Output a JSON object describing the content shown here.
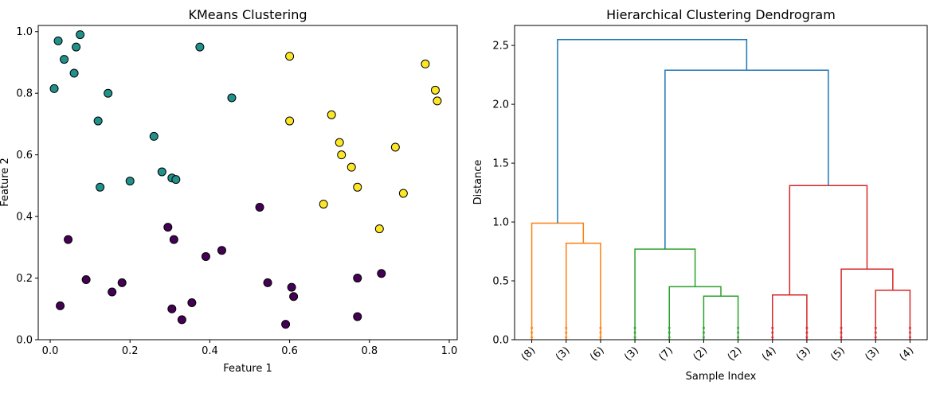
{
  "chart_data": [
    {
      "type": "scatter",
      "title": "KMeans Clustering",
      "xlabel": "Feature 1",
      "ylabel": "Feature 2",
      "xlim": [
        -0.03,
        1.02
      ],
      "ylim": [
        0.0,
        1.02
      ],
      "xticks": [
        "0.0",
        "0.2",
        "0.4",
        "0.6",
        "0.8",
        "1.0"
      ],
      "yticks": [
        "0.0",
        "0.2",
        "0.4",
        "0.6",
        "0.8",
        "1.0"
      ],
      "grid": false,
      "cluster_colors": [
        "#440154",
        "#21918c",
        "#fde725"
      ],
      "points": [
        {
          "x": 0.02,
          "y": 0.97,
          "c": 1
        },
        {
          "x": 0.075,
          "y": 0.99,
          "c": 1
        },
        {
          "x": 0.035,
          "y": 0.91,
          "c": 1
        },
        {
          "x": 0.065,
          "y": 0.95,
          "c": 1
        },
        {
          "x": 0.06,
          "y": 0.865,
          "c": 1
        },
        {
          "x": 0.01,
          "y": 0.815,
          "c": 1
        },
        {
          "x": 0.145,
          "y": 0.8,
          "c": 1
        },
        {
          "x": 0.12,
          "y": 0.71,
          "c": 1
        },
        {
          "x": 0.375,
          "y": 0.95,
          "c": 1
        },
        {
          "x": 0.455,
          "y": 0.785,
          "c": 1
        },
        {
          "x": 0.26,
          "y": 0.66,
          "c": 1
        },
        {
          "x": 0.28,
          "y": 0.545,
          "c": 1
        },
        {
          "x": 0.305,
          "y": 0.525,
          "c": 1
        },
        {
          "x": 0.315,
          "y": 0.52,
          "c": 1
        },
        {
          "x": 0.2,
          "y": 0.515,
          "c": 1
        },
        {
          "x": 0.125,
          "y": 0.495,
          "c": 1
        },
        {
          "x": 0.6,
          "y": 0.92,
          "c": 2
        },
        {
          "x": 0.94,
          "y": 0.895,
          "c": 2
        },
        {
          "x": 0.965,
          "y": 0.81,
          "c": 2
        },
        {
          "x": 0.97,
          "y": 0.775,
          "c": 2
        },
        {
          "x": 0.6,
          "y": 0.71,
          "c": 2
        },
        {
          "x": 0.705,
          "y": 0.73,
          "c": 2
        },
        {
          "x": 0.725,
          "y": 0.64,
          "c": 2
        },
        {
          "x": 0.73,
          "y": 0.6,
          "c": 2
        },
        {
          "x": 0.865,
          "y": 0.625,
          "c": 2
        },
        {
          "x": 0.755,
          "y": 0.56,
          "c": 2
        },
        {
          "x": 0.77,
          "y": 0.495,
          "c": 2
        },
        {
          "x": 0.885,
          "y": 0.475,
          "c": 2
        },
        {
          "x": 0.685,
          "y": 0.44,
          "c": 2
        },
        {
          "x": 0.825,
          "y": 0.36,
          "c": 2
        },
        {
          "x": 0.525,
          "y": 0.43,
          "c": 0
        },
        {
          "x": 0.045,
          "y": 0.325,
          "c": 0
        },
        {
          "x": 0.295,
          "y": 0.365,
          "c": 0
        },
        {
          "x": 0.31,
          "y": 0.325,
          "c": 0
        },
        {
          "x": 0.39,
          "y": 0.27,
          "c": 0
        },
        {
          "x": 0.43,
          "y": 0.29,
          "c": 0
        },
        {
          "x": 0.09,
          "y": 0.195,
          "c": 0
        },
        {
          "x": 0.18,
          "y": 0.185,
          "c": 0
        },
        {
          "x": 0.155,
          "y": 0.155,
          "c": 0
        },
        {
          "x": 0.545,
          "y": 0.185,
          "c": 0
        },
        {
          "x": 0.605,
          "y": 0.17,
          "c": 0
        },
        {
          "x": 0.61,
          "y": 0.14,
          "c": 0
        },
        {
          "x": 0.77,
          "y": 0.2,
          "c": 0
        },
        {
          "x": 0.83,
          "y": 0.215,
          "c": 0
        },
        {
          "x": 0.025,
          "y": 0.11,
          "c": 0
        },
        {
          "x": 0.305,
          "y": 0.1,
          "c": 0
        },
        {
          "x": 0.355,
          "y": 0.12,
          "c": 0
        },
        {
          "x": 0.33,
          "y": 0.065,
          "c": 0
        },
        {
          "x": 0.59,
          "y": 0.05,
          "c": 0
        },
        {
          "x": 0.77,
          "y": 0.075,
          "c": 0
        }
      ]
    },
    {
      "type": "dendrogram",
      "title": "Hierarchical Clustering Dendrogram",
      "xlabel": "Sample Index",
      "ylabel": "Distance",
      "ylim": [
        0.0,
        2.67
      ],
      "yticks": [
        "0.0",
        "0.5",
        "1.0",
        "1.5",
        "2.0",
        "2.5"
      ],
      "leaf_labels": [
        "(8)",
        "(3)",
        "(6)",
        "(3)",
        "(7)",
        "(2)",
        "(2)",
        "(4)",
        "(3)",
        "(5)",
        "(3)",
        "(4)"
      ],
      "links": [
        {
          "left": 1.5,
          "right": 2.5,
          "h": 0.82,
          "lh": 0.0,
          "rh": 0.0,
          "color": "#ff7f0e"
        },
        {
          "left": 0.5,
          "right": 2.0,
          "h": 0.99,
          "lh": 0.0,
          "rh": 0.82,
          "color": "#ff7f0e"
        },
        {
          "left": 5.5,
          "right": 6.5,
          "h": 0.37,
          "lh": 0.0,
          "rh": 0.0,
          "color": "#2ca02c"
        },
        {
          "left": 4.5,
          "right": 6.0,
          "h": 0.45,
          "lh": 0.0,
          "rh": 0.37,
          "color": "#2ca02c"
        },
        {
          "left": 3.5,
          "right": 5.25,
          "h": 0.77,
          "lh": 0.0,
          "rh": 0.45,
          "color": "#2ca02c"
        },
        {
          "left": 7.5,
          "right": 8.5,
          "h": 0.38,
          "lh": 0.0,
          "rh": 0.0,
          "color": "#d62728"
        },
        {
          "left": 10.5,
          "right": 11.5,
          "h": 0.42,
          "lh": 0.0,
          "rh": 0.0,
          "color": "#d62728"
        },
        {
          "left": 9.5,
          "right": 11.0,
          "h": 0.6,
          "lh": 0.0,
          "rh": 0.42,
          "color": "#d62728"
        },
        {
          "left": 8.0,
          "right": 10.25,
          "h": 1.31,
          "lh": 0.38,
          "rh": 0.6,
          "color": "#d62728"
        },
        {
          "left": 4.375,
          "right": 9.125,
          "h": 2.29,
          "lh": 0.77,
          "rh": 1.31,
          "color": "#1f77b4"
        },
        {
          "left": 1.25,
          "right": 6.75,
          "h": 2.55,
          "lh": 0.99,
          "rh": 2.29,
          "color": "#1f77b4"
        }
      ]
    }
  ]
}
